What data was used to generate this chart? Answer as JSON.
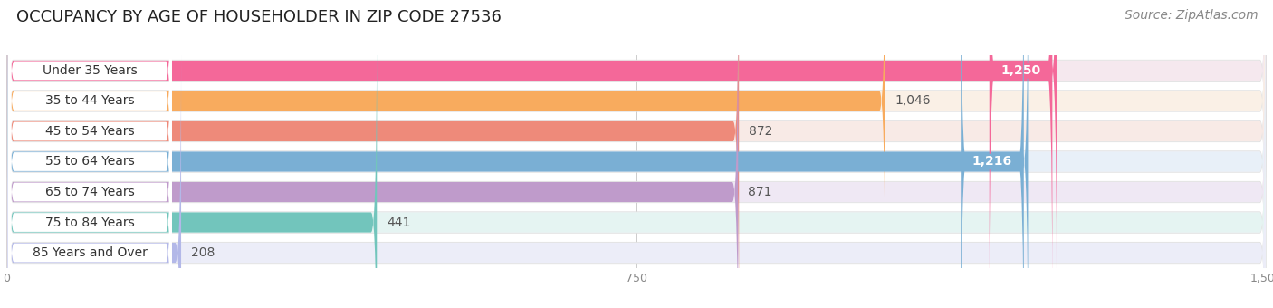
{
  "title": "OCCUPANCY BY AGE OF HOUSEHOLDER IN ZIP CODE 27536",
  "source": "Source: ZipAtlas.com",
  "categories": [
    "Under 35 Years",
    "35 to 44 Years",
    "45 to 54 Years",
    "55 to 64 Years",
    "65 to 74 Years",
    "75 to 84 Years",
    "85 Years and Over"
  ],
  "values": [
    1250,
    1046,
    872,
    1216,
    871,
    441,
    208
  ],
  "bar_colors": [
    "#F46899",
    "#F8AB5E",
    "#EE8A7A",
    "#7AAFD4",
    "#BF9BCB",
    "#72C5BC",
    "#B3B8E8"
  ],
  "bar_bg_colors": [
    "#F5E8EE",
    "#FAF0E6",
    "#F8EAE6",
    "#E8F0F8",
    "#EFE8F4",
    "#E5F4F2",
    "#ECEDF8"
  ],
  "xlim": [
    0,
    1500
  ],
  "xticks": [
    0,
    750,
    1500
  ],
  "value_inside_threshold": 1100,
  "title_fontsize": 13,
  "source_fontsize": 10,
  "value_fontsize": 10,
  "label_fontsize": 10,
  "background_color": "#ffffff",
  "label_bg_color": "#ffffff",
  "label_text_color": "#333333",
  "outer_bg_color": "#f0f0f0"
}
